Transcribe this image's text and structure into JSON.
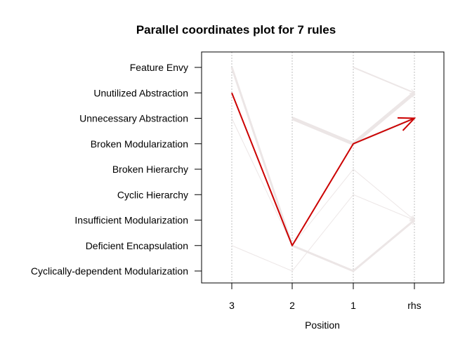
{
  "chart_data": {
    "type": "parallel-coordinates",
    "title": "Parallel coordinates plot for 7 rules",
    "xlabel": "Position",
    "x_categories": [
      "3",
      "2",
      "1",
      "rhs"
    ],
    "y_categories": [
      "Feature Envy",
      "Unutilized Abstraction",
      "Unnecessary Abstraction",
      "Broken Modularization",
      "Broken Hierarchy",
      "Cyclic Hierarchy",
      "Insufficient Modularization",
      "Deficient Encapsulation",
      "Cyclically-dependent Modularization"
    ],
    "grid": true,
    "highlight_color": "#cc0000",
    "rule_color": "#ece6e6",
    "rules": [
      {
        "path": [
          null,
          "Unnecessary Abstraction",
          "Broken Modularization",
          "Unutilized Abstraction"
        ],
        "weight": 5
      },
      {
        "path": [
          "Feature Envy",
          "Deficient Encapsulation",
          "Cyclically-dependent Modularization",
          "Insufficient Modularization"
        ],
        "weight": 3
      },
      {
        "path": [
          null,
          null,
          "Feature Envy",
          "Unutilized Abstraction"
        ],
        "weight": 2
      },
      {
        "path": [
          "Unnecessary Abstraction",
          "Deficient Encapsulation",
          "Broken Hierarchy",
          "Insufficient Modularization"
        ],
        "weight": 1
      },
      {
        "path": [
          "Deficient Encapsulation",
          "Cyclically-dependent Modularization",
          "Cyclic Hierarchy",
          "Insufficient Modularization"
        ],
        "weight": 1
      },
      {
        "path": [
          null,
          "Unnecessary Abstraction",
          "Broken Modularization",
          "Unnecessary Abstraction"
        ],
        "weight": 3
      },
      {
        "path": [
          "Unutilized Abstraction",
          "Deficient Encapsulation",
          "Broken Modularization",
          "Unnecessary Abstraction"
        ],
        "weight": 2,
        "highlight": true
      }
    ]
  }
}
